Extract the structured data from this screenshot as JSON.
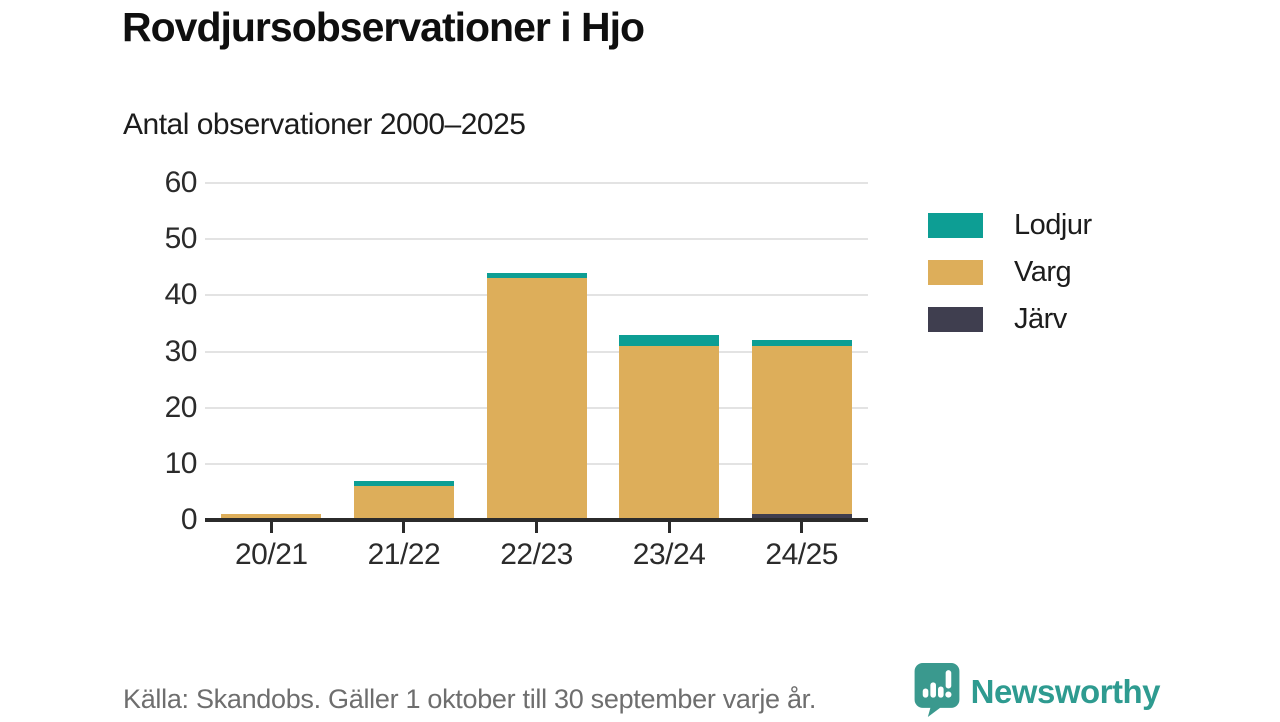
{
  "header": {
    "title": "Rovdjursobservationer i Hjo",
    "subtitle": "Antal observationer 2000–2025"
  },
  "chart_data": {
    "type": "bar",
    "stacked": true,
    "title": "Rovdjursobservationer i Hjo",
    "subtitle": "Antal observationer 2000–2025",
    "categories": [
      "20/21",
      "21/22",
      "22/23",
      "23/24",
      "24/25"
    ],
    "series": [
      {
        "name": "Lodjur",
        "key": "lodjur",
        "color": "#0d9e94",
        "values": [
          0,
          1,
          1,
          2,
          1
        ]
      },
      {
        "name": "Varg",
        "key": "varg",
        "color": "#ddae5a",
        "values": [
          1,
          6,
          43,
          31,
          30
        ]
      },
      {
        "name": "Järv",
        "key": "jarv",
        "color": "#3f3e4f",
        "values": [
          0,
          0,
          0,
          0,
          1
        ]
      }
    ],
    "totals": [
      1,
      7,
      44,
      33,
      32
    ],
    "xlabel": "",
    "ylabel": "",
    "ylim": [
      0,
      60
    ],
    "yticks": [
      0,
      10,
      20,
      30,
      40,
      50,
      60
    ],
    "grid": true,
    "legend_position": "right",
    "stack_order_bottom_to_top": [
      "Järv",
      "Varg",
      "Lodjur"
    ]
  },
  "footer": {
    "source": "Källa: Skandobs. Gäller 1 oktober till 30 september varje år.",
    "brand": "Newsworthy"
  },
  "colors": {
    "accent_teal": "#0d9e94",
    "accent_gold": "#ddae5a",
    "accent_dark": "#3f3e4f",
    "brand_teal": "#2e9b90",
    "logo_teal": "#3a998e",
    "grid": "#e3e3e3",
    "axis": "#2b2b2b",
    "text": "#1c1c1c",
    "muted": "#6e6e6e"
  }
}
